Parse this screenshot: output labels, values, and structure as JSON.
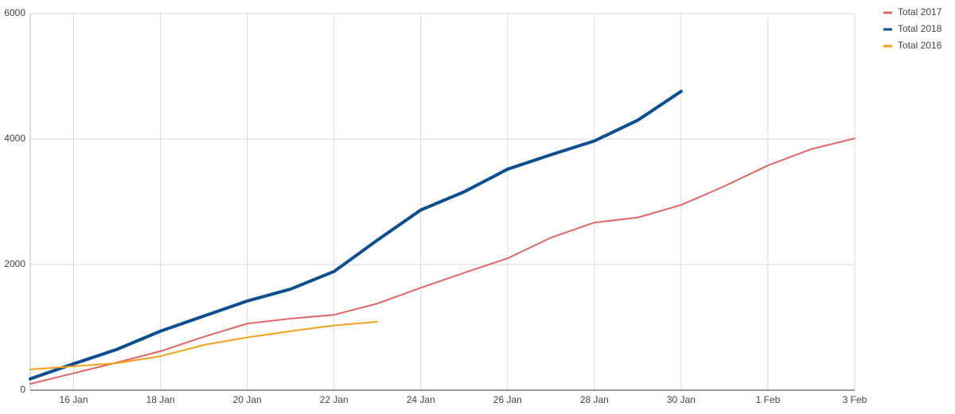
{
  "chart_data": {
    "type": "line",
    "categories": [
      null,
      "16 Jan",
      null,
      "18 Jan",
      null,
      "20 Jan",
      null,
      "22 Jan",
      null,
      "24 Jan",
      null,
      "26 Jan",
      null,
      "28 Jan",
      null,
      "30 Jan",
      null,
      "1 Feb",
      null,
      "3 Feb"
    ],
    "series": [
      {
        "name": "Total 2017",
        "color": "#e06666",
        "line_width": 2,
        "values": [
          100,
          270,
          440,
          620,
          850,
          1060,
          1140,
          1200,
          1380,
          1630,
          1870,
          2100,
          2430,
          2670,
          2750,
          2950,
          3250,
          3580,
          3840,
          4010
        ]
      },
      {
        "name": "Total 2018",
        "color": "#0b4f91",
        "line_width": 4,
        "values": [
          180,
          420,
          650,
          940,
          1180,
          1420,
          1610,
          1890,
          2390,
          2870,
          3160,
          3520,
          3750,
          3970,
          4300,
          4760,
          null,
          null,
          null,
          null
        ]
      },
      {
        "name": "Total 2016",
        "color": "#f1a11c",
        "line_width": 2,
        "values": [
          330,
          380,
          430,
          540,
          720,
          840,
          940,
          1030,
          1090,
          null,
          null,
          null,
          null,
          null,
          null,
          null,
          null,
          null,
          null,
          null
        ]
      }
    ],
    "ylim": [
      0,
      6000
    ],
    "yticks": [
      0,
      2000,
      4000,
      6000
    ],
    "grid": true,
    "legend": "top-right"
  }
}
